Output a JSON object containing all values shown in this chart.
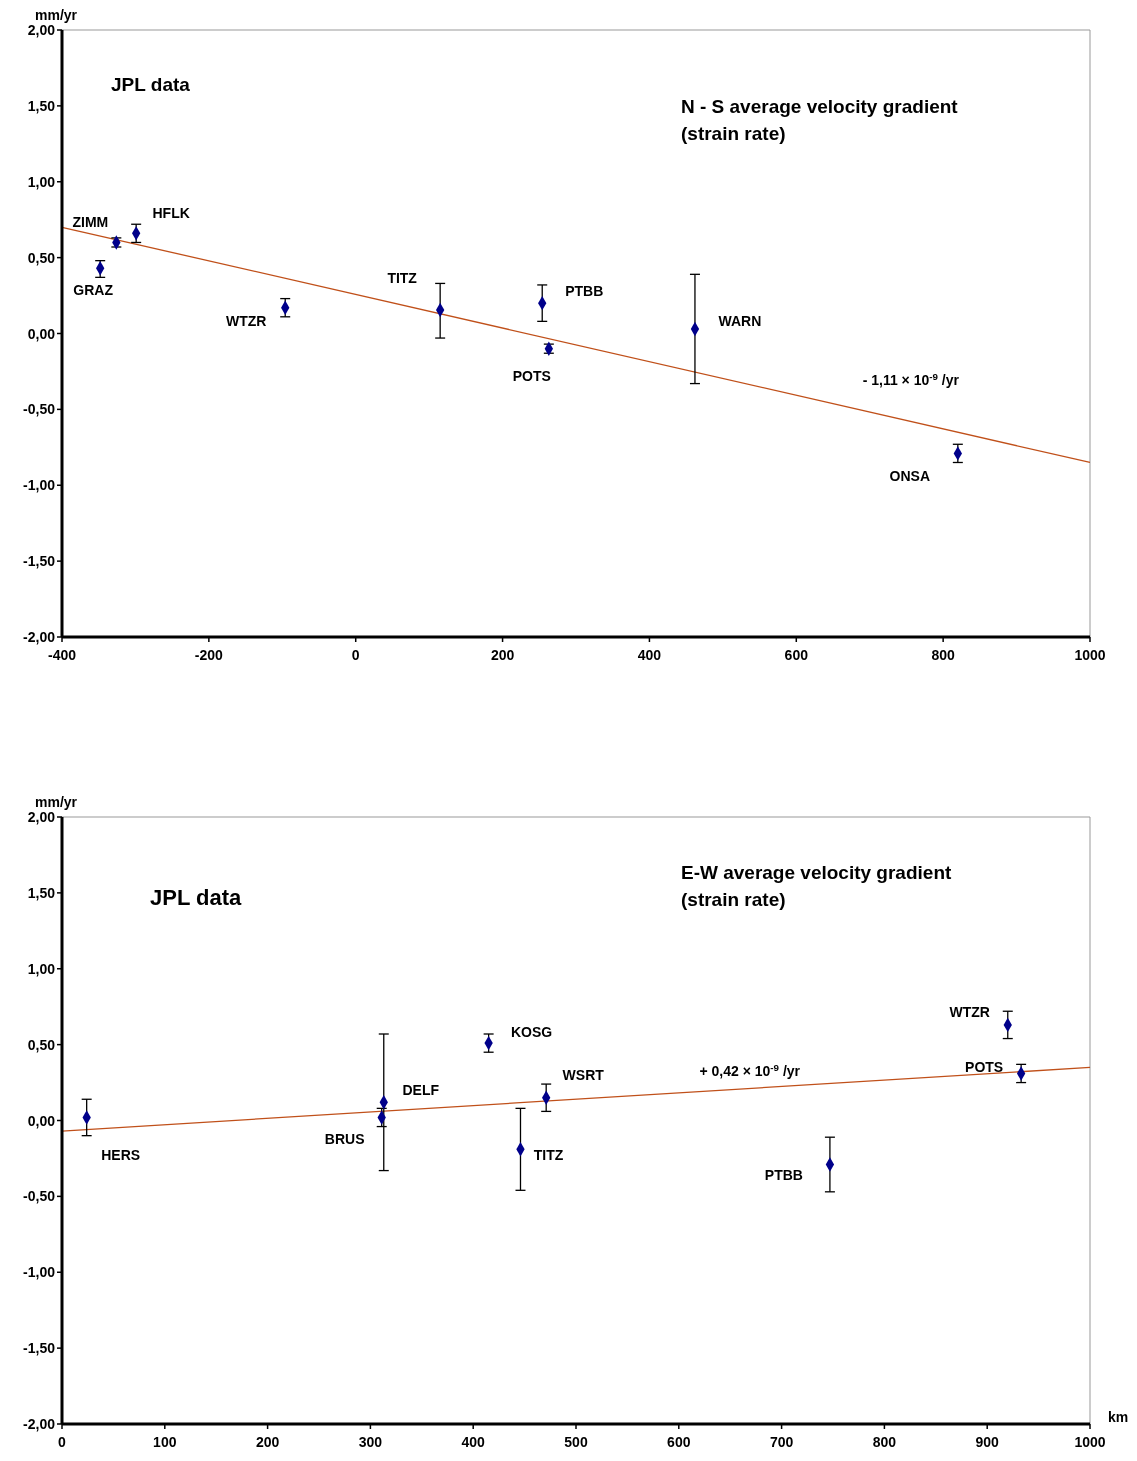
{
  "chart_data": [
    {
      "type": "scatter",
      "title": "N - S average velocity gradient\n(strain rate)",
      "subtitle": "JPL data",
      "ylabel": "mm/yr",
      "grid": false,
      "xlim": [
        -400,
        1000
      ],
      "xticks": [
        -400,
        -200,
        0,
        200,
        400,
        600,
        800,
        1000
      ],
      "ylim": [
        -2,
        2
      ],
      "yticks": [
        {
          "value": -2,
          "label": "-2,00"
        },
        {
          "value": -1.5,
          "label": "-1,50"
        },
        {
          "value": -1,
          "label": "-1,00"
        },
        {
          "value": -0.5,
          "label": "-0,50"
        },
        {
          "value": 0,
          "label": "0,00"
        },
        {
          "value": 0.5,
          "label": "0,50"
        },
        {
          "value": 1,
          "label": "1,00"
        },
        {
          "value": 1.5,
          "label": "1,50"
        },
        {
          "value": 2,
          "label": "2,00"
        }
      ],
      "series": [
        {
          "type": "scatter",
          "marker": "diamond",
          "color": "#00008b",
          "x": [
            -348,
            -326,
            -299,
            -96,
            115,
            254,
            263,
            462,
            820
          ],
          "values": [
            0.43,
            0.6,
            0.66,
            0.17,
            0.155,
            0.2,
            -0.1,
            0.03,
            -0.79
          ],
          "errors": [
            [
              0.37,
              0.48
            ],
            [
              0.57,
              0.63
            ],
            [
              0.6,
              0.72
            ],
            [
              0.11,
              0.23
            ],
            [
              -0.03,
              0.33
            ],
            [
              0.08,
              0.32
            ],
            [
              -0.13,
              -0.07
            ],
            [
              -0.33,
              0.39
            ],
            [
              -0.85,
              -0.73
            ]
          ]
        },
        {
          "type": "line",
          "color": "#c0501a",
          "x": [
            -400,
            1000
          ],
          "values": [
            0.7,
            -0.85
          ]
        }
      ],
      "annotations": [
        {
          "text": "ZIMM",
          "x": -326,
          "y": 0.6
        },
        {
          "text": "HFLK",
          "x": -299,
          "y": 0.66
        },
        {
          "text": "GRAZ",
          "x": -348,
          "y": 0.43
        },
        {
          "text": "WTZR",
          "x": -96,
          "y": 0.17
        },
        {
          "text": "TITZ",
          "x": 115,
          "y": 0.155
        },
        {
          "text": "PTBB",
          "x": 254,
          "y": 0.2
        },
        {
          "text": "POTS",
          "x": 263,
          "y": -0.1
        },
        {
          "text": "WARN",
          "x": 462,
          "y": 0.03
        },
        {
          "text": "ONSA",
          "x": 820,
          "y": -0.79
        },
        {
          "text": "- 1,11 × 10$^{-9}$ /yr",
          "x": 756,
          "y": -0.58
        }
      ]
    },
    {
      "type": "scatter",
      "title": "E-W average velocity gradient\n(strain rate)",
      "subtitle": "JPL data",
      "ylabel": "mm/yr",
      "xlabel": "km",
      "grid": false,
      "xlim": [
        0,
        1000
      ],
      "xticks": [
        0,
        100,
        200,
        300,
        400,
        500,
        600,
        700,
        800,
        900,
        1000
      ],
      "ylim": [
        -2,
        2
      ],
      "yticks": [
        {
          "value": -2,
          "label": "-2,00"
        },
        {
          "value": -1.5,
          "label": "-1,50"
        },
        {
          "value": -1,
          "label": "-1,00"
        },
        {
          "value": -0.5,
          "label": "-0,50"
        },
        {
          "value": 0,
          "label": "0,00"
        },
        {
          "value": 0.5,
          "label": "0,50"
        },
        {
          "value": 1,
          "label": "1,00"
        },
        {
          "value": 1.5,
          "label": "1,50"
        },
        {
          "value": 2,
          "label": "2,00"
        }
      ],
      "series": [
        {
          "type": "scatter",
          "marker": "diamond",
          "color": "#00008b",
          "x": [
            24,
            311,
            313,
            415,
            446,
            471,
            747,
            920,
            933
          ],
          "values": [
            0.02,
            0.02,
            0.12,
            0.51,
            -0.19,
            0.15,
            -0.29,
            0.63,
            0.31
          ],
          "errors": [
            [
              -0.1,
              0.14
            ],
            [
              -0.04,
              0.08
            ],
            [
              -0.33,
              0.57
            ],
            [
              0.45,
              0.57
            ],
            [
              -0.46,
              0.08
            ],
            [
              0.06,
              0.24
            ],
            [
              -0.47,
              -0.11
            ],
            [
              0.54,
              0.72
            ],
            [
              0.25,
              0.37
            ]
          ]
        },
        {
          "type": "line",
          "color": "#c0501a",
          "x": [
            0,
            1000
          ],
          "values": [
            -0.07,
            0.35
          ]
        }
      ],
      "annotations": [
        {
          "text": "HERS",
          "x": 24,
          "y": 0.02
        },
        {
          "text": "BRUS",
          "x": 311,
          "y": 0.02
        },
        {
          "text": "DELF",
          "x": 313,
          "y": 0.12
        },
        {
          "text": "KOSG",
          "x": 415,
          "y": 0.51
        },
        {
          "text": "WSRT",
          "x": 471,
          "y": 0.15
        },
        {
          "text": "TITZ",
          "x": 446,
          "y": -0.19
        },
        {
          "text": "PTBB",
          "x": 747,
          "y": -0.29
        },
        {
          "text": "WTZR",
          "x": 920,
          "y": 0.63
        },
        {
          "text": "POTS",
          "x": 933,
          "y": 0.31
        },
        {
          "text": "+ 0,42 × 10$^{-9}$ /yr",
          "x": 669,
          "y": 0.21
        }
      ]
    }
  ]
}
